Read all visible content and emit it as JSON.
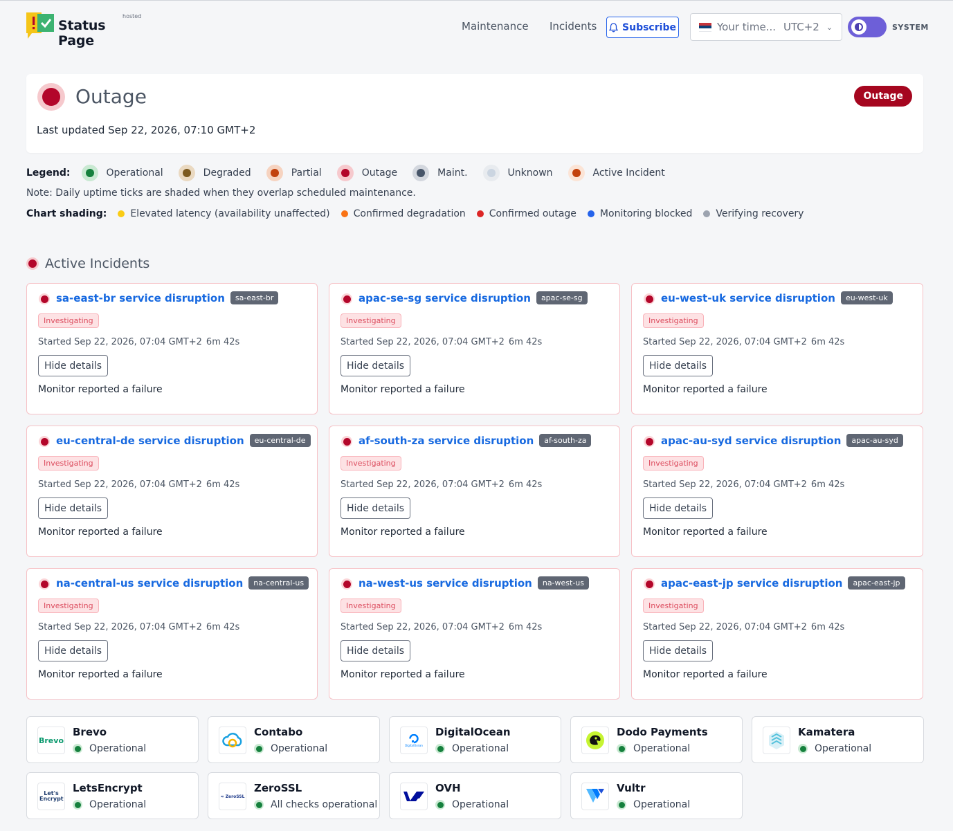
{
  "header": {
    "logo_text": "Status Page",
    "logo_hosted": "hosted",
    "nav": [
      "Maintenance",
      "Incidents"
    ],
    "subscribe_label": "Subscribe",
    "timezone": {
      "placeholder": "Your time...",
      "offset": "UTC+2"
    },
    "theme_label": "SYSTEM"
  },
  "overall": {
    "title": "Outage",
    "badge": "Outage",
    "last_updated": "Last updated Sep 22, 2026, 07:10 GMT+2"
  },
  "legend": {
    "title": "Legend:",
    "items": [
      {
        "label": "Operational",
        "color": "#15803d",
        "bg": "#c9e9d2"
      },
      {
        "label": "Degraded",
        "color": "#7c5a1f",
        "bg": "#ead9c1"
      },
      {
        "label": "Partial",
        "color": "#c2410c",
        "bg": "#f6d3c0"
      },
      {
        "label": "Outage",
        "color": "#b3062a",
        "bg": "#f6c9cd"
      },
      {
        "label": "Maint.",
        "color": "#475569",
        "bg": "#d3d7de"
      },
      {
        "label": "Unknown",
        "color": "#cbd5e1",
        "bg": "#e8ebef"
      },
      {
        "label": "Active Incident",
        "color": "#c2410c",
        "bg": "#fbe4d6"
      }
    ]
  },
  "note": "Note: Daily uptime ticks are shaded when they overlap scheduled maintenance.",
  "shading": {
    "title": "Chart shading:",
    "items": [
      {
        "label": "Elevated latency (availability unaffected)",
        "color": "#facc15"
      },
      {
        "label": "Confirmed degradation",
        "color": "#f97316"
      },
      {
        "label": "Confirmed outage",
        "color": "#dc2626"
      },
      {
        "label": "Monitoring blocked",
        "color": "#2563eb"
      },
      {
        "label": "Verifying recovery",
        "color": "#9ca3af"
      }
    ]
  },
  "active_incidents": {
    "title": "Active Incidents",
    "items": [
      {
        "title": "sa-east-br service disruption",
        "tag": "sa-east-br",
        "status": "Investigating",
        "started": "Started Sep 22, 2026, 07:04 GMT+2",
        "duration": "6m 42s",
        "button": "Hide details",
        "message": "Monitor reported a failure"
      },
      {
        "title": "apac-se-sg service disruption",
        "tag": "apac-se-sg",
        "status": "Investigating",
        "started": "Started Sep 22, 2026, 07:04 GMT+2",
        "duration": "6m 42s",
        "button": "Hide details",
        "message": "Monitor reported a failure"
      },
      {
        "title": "eu-west-uk service disruption",
        "tag": "eu-west-uk",
        "status": "Investigating",
        "started": "Started Sep 22, 2026, 07:04 GMT+2",
        "duration": "6m 42s",
        "button": "Hide details",
        "message": "Monitor reported a failure"
      },
      {
        "title": "eu-central-de service disruption",
        "tag": "eu-central-de",
        "status": "Investigating",
        "started": "Started Sep 22, 2026, 07:04 GMT+2",
        "duration": "6m 42s",
        "button": "Hide details",
        "message": "Monitor reported a failure"
      },
      {
        "title": "af-south-za service disruption",
        "tag": "af-south-za",
        "status": "Investigating",
        "started": "Started Sep 22, 2026, 07:04 GMT+2",
        "duration": "6m 42s",
        "button": "Hide details",
        "message": "Monitor reported a failure"
      },
      {
        "title": "apac-au-syd service disruption",
        "tag": "apac-au-syd",
        "status": "Investigating",
        "started": "Started Sep 22, 2026, 07:04 GMT+2",
        "duration": "6m 42s",
        "button": "Hide details",
        "message": "Monitor reported a failure"
      },
      {
        "title": "na-central-us service disruption",
        "tag": "na-central-us",
        "status": "Investigating",
        "started": "Started Sep 22, 2026, 07:04 GMT+2",
        "duration": "6m 42s",
        "button": "Hide details",
        "message": "Monitor reported a failure"
      },
      {
        "title": "na-west-us service disruption",
        "tag": "na-west-us",
        "status": "Investigating",
        "started": "Started Sep 22, 2026, 07:04 GMT+2",
        "duration": "6m 42s",
        "button": "Hide details",
        "message": "Monitor reported a failure"
      },
      {
        "title": "apac-east-jp service disruption",
        "tag": "apac-east-jp",
        "status": "Investigating",
        "started": "Started Sep 22, 2026, 07:04 GMT+2",
        "duration": "6m 42s",
        "button": "Hide details",
        "message": "Monitor reported a failure"
      }
    ]
  },
  "providers": [
    {
      "name": "Brevo",
      "status": "Operational",
      "logo_text": "Brevo",
      "icon": "brevo-logo-icon"
    },
    {
      "name": "Contabo",
      "status": "Operational",
      "icon": "contabo-logo-icon"
    },
    {
      "name": "DigitalOcean",
      "status": "Operational",
      "logo_text": "DigitalOcean",
      "icon": "digitalocean-logo-icon"
    },
    {
      "name": "Dodo Payments",
      "status": "Operational",
      "icon": "dodo-payments-logo-icon"
    },
    {
      "name": "Kamatera",
      "status": "Operational",
      "icon": "kamatera-logo-icon"
    },
    {
      "name": "LetsEncrypt",
      "status": "Operational",
      "logo_text": "Let's Encrypt",
      "icon": "letsencrypt-logo-icon"
    },
    {
      "name": "ZeroSSL",
      "status": "All checks operational",
      "logo_text": "ZeroSSL",
      "icon": "zerossl-logo-icon"
    },
    {
      "name": "OVH",
      "status": "Operational",
      "icon": "ovh-logo-icon"
    },
    {
      "name": "Vultr",
      "status": "Operational",
      "icon": "vultr-logo-icon"
    }
  ]
}
